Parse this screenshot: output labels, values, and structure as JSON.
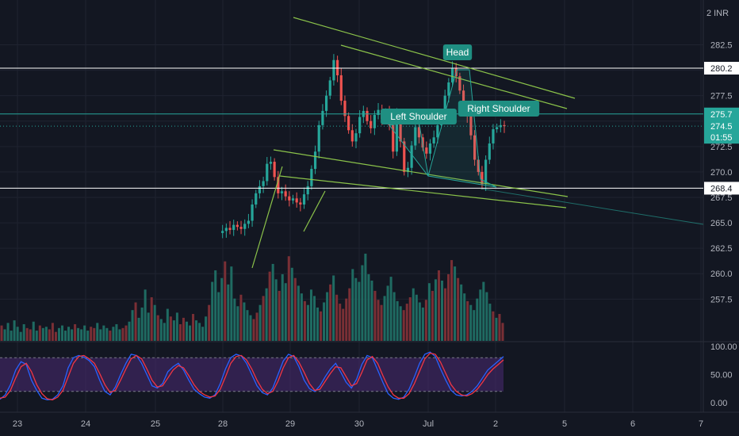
{
  "chart_data": {
    "type": "candlestick",
    "currency_label": "2 INR",
    "price_axis": {
      "ticks": [
        "282.5",
        "280.0",
        "277.5",
        "275.0",
        "272.5",
        "270.0",
        "267.5",
        "265.0",
        "262.5",
        "260.0",
        "257.5"
      ],
      "values": [
        282.5,
        280.0,
        277.5,
        275.0,
        272.5,
        270.0,
        267.5,
        265.0,
        262.5,
        260.0,
        257.5
      ],
      "ylim": [
        255.5,
        284.5
      ]
    },
    "date_axis": {
      "ticks": [
        "23",
        "24",
        "25",
        "28",
        "29",
        "30",
        "Jul",
        "2",
        "5",
        "6",
        "7"
      ]
    },
    "oscillator_axis": {
      "ticks": [
        "100.00",
        "50.00",
        "0.00"
      ],
      "values": [
        100,
        50,
        0
      ],
      "band": [
        20,
        80
      ]
    },
    "price_badges": [
      {
        "text": "280.2",
        "value": 280.2,
        "style": "white"
      },
      {
        "text": "275.7",
        "value": 275.7,
        "style": "teal"
      },
      {
        "text": "274.5",
        "value": 274.5,
        "style": "green",
        "sub": "01:55"
      },
      {
        "text": "268.4",
        "value": 268.4,
        "style": "white"
      }
    ],
    "horizontal_levels": [
      280.2,
      275.7,
      268.4
    ],
    "annotations": [
      {
        "text": "Head",
        "price": 281.5
      },
      {
        "text": "Left Shoulder",
        "price": 275.5
      },
      {
        "text": "Right Shoulder",
        "price": 276.4
      }
    ],
    "price_path": [
      264.0,
      264.2,
      264.5,
      264.3,
      264.8,
      264.6,
      264.4,
      264.9,
      265.2,
      266.8,
      267.9,
      268.6,
      269.1,
      270.8,
      271.0,
      269.5,
      267.9,
      268.1,
      267.6,
      267.2,
      267.4,
      267.0,
      266.8,
      267.8,
      268.6,
      270.3,
      272.0,
      274.6,
      276.0,
      277.5,
      279.0,
      281.0,
      279.5,
      277.0,
      275.5,
      274.1,
      273.0,
      273.8,
      275.4,
      276.0,
      275.0,
      274.3,
      275.6,
      276.1,
      275.2,
      275.9,
      274.6,
      272.0,
      275.6,
      273.0,
      270.0,
      270.4,
      272.6,
      274.4,
      273.4,
      272.4,
      271.8,
      272.8,
      273.4,
      274.6,
      275.6,
      277.5,
      278.8,
      280.2,
      279.4,
      278.0,
      276.5,
      275.5,
      273.6,
      271.2,
      270.0,
      268.8,
      271.2,
      272.8,
      274.2,
      274.4,
      274.6,
      274.5
    ],
    "volume": [
      12,
      9,
      14,
      8,
      16,
      11,
      7,
      13,
      10,
      9,
      15,
      8,
      12,
      10,
      11,
      9,
      14,
      7,
      10,
      12,
      8,
      11,
      9,
      13,
      10,
      9,
      12,
      8,
      11,
      10,
      14,
      9,
      12,
      10,
      8,
      11,
      13,
      9,
      10,
      12,
      15,
      24,
      30,
      18,
      26,
      40,
      22,
      34,
      28,
      20,
      17,
      14,
      25,
      19,
      16,
      22,
      13,
      18,
      15,
      12,
      21,
      16,
      14,
      11,
      19,
      28,
      46,
      55,
      38,
      49,
      62,
      44,
      58,
      33,
      27,
      36,
      30,
      24,
      20,
      17,
      22,
      28,
      35,
      41,
      54,
      60,
      48,
      39,
      52,
      45,
      66,
      57,
      49,
      43,
      37,
      31,
      28,
      40,
      35,
      26,
      23,
      30,
      38,
      44,
      51,
      36,
      29,
      25,
      33,
      41,
      56,
      49,
      46,
      59,
      68,
      52,
      47,
      39,
      32,
      28,
      35,
      43,
      50,
      38,
      31,
      27,
      24,
      29,
      34,
      41,
      36,
      30,
      26,
      32,
      45,
      39,
      48,
      55,
      47,
      41,
      52,
      63,
      58,
      49,
      44,
      37,
      31,
      28,
      24,
      33,
      40,
      46,
      38,
      29,
      23,
      18,
      21,
      14
    ],
    "stoch_k": [
      6,
      14,
      32,
      58,
      73,
      68,
      40,
      22,
      8,
      5,
      6,
      14,
      30,
      62,
      80,
      84,
      81,
      75,
      64,
      40,
      20,
      14,
      28,
      50,
      70,
      86,
      84,
      70,
      50,
      30,
      26,
      34,
      55,
      64,
      70,
      58,
      40,
      24,
      16,
      10,
      8,
      14,
      34,
      60,
      80,
      86,
      83,
      70,
      50,
      30,
      18,
      14,
      26,
      50,
      74,
      86,
      82,
      64,
      40,
      25,
      20,
      30,
      46,
      60,
      70,
      54,
      36,
      26,
      42,
      68,
      84,
      80,
      58,
      36,
      16,
      8,
      6,
      10,
      24,
      46,
      70,
      86,
      90,
      82,
      60,
      40,
      22,
      14,
      12,
      14,
      20,
      30,
      44,
      58,
      66,
      74,
      82
    ],
    "stoch_d": [
      8,
      10,
      22,
      44,
      64,
      70,
      55,
      32,
      16,
      7,
      5,
      10,
      22,
      46,
      70,
      82,
      84,
      78,
      70,
      52,
      32,
      18,
      22,
      40,
      60,
      78,
      84,
      78,
      60,
      40,
      28,
      30,
      44,
      58,
      66,
      62,
      48,
      32,
      20,
      14,
      10,
      12,
      24,
      46,
      70,
      82,
      84,
      76,
      60,
      40,
      24,
      16,
      20,
      38,
      62,
      80,
      84,
      72,
      54,
      34,
      22,
      24,
      38,
      52,
      64,
      62,
      46,
      30,
      34,
      54,
      76,
      82,
      70,
      48,
      28,
      14,
      8,
      8,
      16,
      34,
      56,
      78,
      88,
      86,
      72,
      52,
      32,
      20,
      14,
      12,
      16,
      24,
      36,
      50,
      60,
      68,
      76
    ]
  }
}
